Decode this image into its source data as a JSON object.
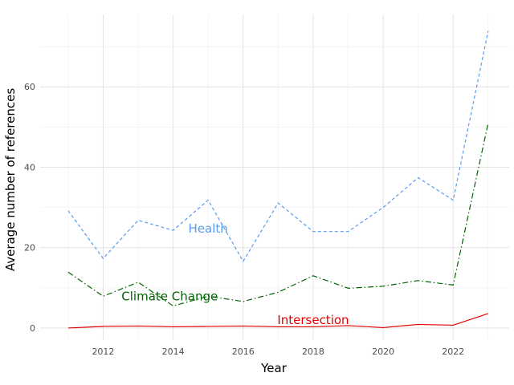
{
  "chart_data": {
    "type": "line",
    "title": "",
    "xlabel": "Year",
    "ylabel": "Average number of references",
    "x": [
      2011,
      2012,
      2013,
      2014,
      2015,
      2016,
      2017,
      2018,
      2019,
      2020,
      2021,
      2022,
      2023
    ],
    "xlim": [
      2010.2,
      2023.6
    ],
    "ylim": [
      -3,
      78
    ],
    "xticks": [
      2012,
      2014,
      2016,
      2018,
      2020,
      2022
    ],
    "yticks": [
      0,
      20,
      40,
      60
    ],
    "grid": true,
    "legend": "none",
    "series": [
      {
        "name": "Health",
        "color": "#5b9bef",
        "dash": "dashed",
        "values": [
          29.2,
          17.3,
          26.8,
          24.3,
          31.8,
          16.6,
          31.1,
          24.0,
          24.0,
          30.0,
          37.4,
          31.8,
          73.9
        ]
      },
      {
        "name": "Climate Change",
        "color": "#006400",
        "dash": "dashdot",
        "values": [
          13.9,
          7.9,
          11.4,
          5.5,
          7.9,
          6.6,
          8.9,
          13.0,
          9.9,
          10.4,
          11.8,
          10.7,
          51.0
        ]
      },
      {
        "name": "Intersection",
        "color": "#e60000",
        "dash": "solid",
        "values": [
          0.0,
          0.4,
          0.5,
          0.3,
          0.4,
          0.5,
          0.3,
          0.3,
          0.6,
          0.1,
          0.9,
          0.7,
          3.6
        ]
      }
    ],
    "annotations": [
      {
        "text": "Health",
        "color": "#5b9bef",
        "x": 2015.0,
        "y": 24.7
      },
      {
        "text": "Climate Change",
        "color": "#006400",
        "x": 2013.9,
        "y": 7.9
      },
      {
        "text": "Intersection",
        "color": "#e60000",
        "x": 2018.0,
        "y": 2.0
      }
    ]
  }
}
